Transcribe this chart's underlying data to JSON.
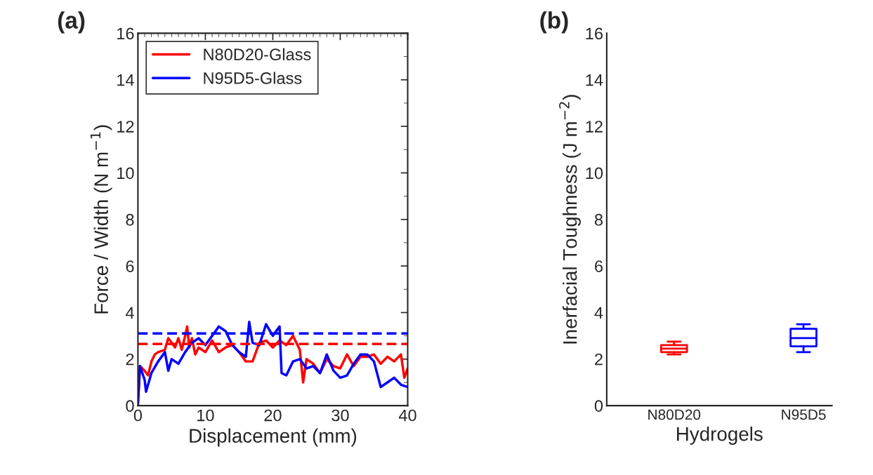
{
  "chart_data": [
    {
      "type": "line",
      "xlabel": "Displacement (mm)",
      "ylabel": "Force / Width (N m$^{−1}$)",
      "annotations": [
        "(a)"
      ],
      "xlim": [
        0,
        40
      ],
      "xticks": [
        0,
        10,
        20,
        30,
        40
      ],
      "ylim": [
        0,
        16
      ],
      "yticks": [
        0,
        2,
        4,
        6,
        8,
        10,
        12,
        14,
        16
      ],
      "legend": "top left",
      "grid": false,
      "line_style": "solid",
      "series": [
        {
          "name": "N80D20-Glass",
          "color": "#ff0000",
          "x": [
            0,
            0.3,
            1,
            1.5,
            2,
            2.5,
            3,
            4,
            4.5,
            5,
            5.5,
            6,
            6.5,
            7,
            7.3,
            7.6,
            8,
            8.5,
            9,
            10,
            11,
            12,
            13,
            14,
            15,
            16,
            17,
            18,
            19,
            20,
            21,
            22,
            23,
            24,
            24.5,
            25,
            26,
            27,
            28,
            29,
            30,
            31,
            32,
            33,
            34,
            35,
            36,
            37,
            38,
            39,
            39.5,
            40
          ],
          "values": [
            0,
            1.7,
            1.5,
            1.3,
            1.9,
            2.2,
            2.3,
            2.4,
            2.9,
            2.7,
            2.5,
            2.9,
            2.4,
            3.0,
            3.4,
            2.5,
            2.9,
            2.2,
            2.5,
            2.3,
            2.8,
            2.3,
            2.5,
            2.6,
            2.3,
            1.9,
            1.9,
            2.7,
            2.8,
            2.5,
            2.8,
            2.6,
            3.0,
            2.4,
            1.0,
            2.0,
            1.8,
            1.4,
            2.0,
            1.7,
            1.6,
            2.2,
            1.7,
            2.1,
            2.1,
            2.2,
            1.8,
            2.1,
            1.9,
            2.2,
            1.2,
            1.6
          ]
        },
        {
          "name": "N95D5-Glass",
          "color": "#0000ff",
          "x": [
            0,
            0.3,
            1,
            1.2,
            2,
            3,
            4,
            4.5,
            5,
            6,
            7,
            8,
            9,
            10,
            11,
            12,
            13,
            14,
            15,
            16,
            16.5,
            17,
            18,
            19,
            20,
            21,
            21.3,
            22,
            23,
            24,
            25,
            26,
            27,
            28,
            29,
            30,
            31,
            32,
            33,
            34,
            35,
            36,
            37,
            38,
            39,
            40
          ],
          "values": [
            0.1,
            1.7,
            1.1,
            0.6,
            1.4,
            1.9,
            2.3,
            1.5,
            2.0,
            1.8,
            2.3,
            2.7,
            2.9,
            2.6,
            3.0,
            3.4,
            3.2,
            2.6,
            2.3,
            2.1,
            3.6,
            2.7,
            2.6,
            3.5,
            3.0,
            3.4,
            1.4,
            1.3,
            1.9,
            2.0,
            1.6,
            1.7,
            1.4,
            2.2,
            1.5,
            1.2,
            1.3,
            1.8,
            2.2,
            2.2,
            1.9,
            0.8,
            1.0,
            1.2,
            0.9,
            0.8
          ]
        }
      ],
      "ref_lines": [
        {
          "axis": "y",
          "value": 3.1,
          "color": "#0000ff",
          "line_style": "dashed"
        },
        {
          "axis": "y",
          "value": 2.65,
          "color": "#ff0000",
          "line_style": "dashed"
        }
      ]
    },
    {
      "type": "box",
      "xlabel": "Hydrogels",
      "ylabel": "Inerfacial Toughness (J m$^{−2}$)",
      "annotations": [
        "(b)"
      ],
      "categories": [
        "N80D20",
        "N95D5"
      ],
      "colors": [
        "#ff0000",
        "#0000ff"
      ],
      "ylim": [
        0,
        16
      ],
      "yticks": [
        0,
        2,
        4,
        6,
        8,
        10,
        12,
        14,
        16
      ],
      "grid": false,
      "boxes": [
        {
          "low": 2.2,
          "q1": 2.3,
          "median": 2.45,
          "q3": 2.6,
          "high": 2.75
        },
        {
          "low": 2.3,
          "q1": 2.55,
          "median": 2.9,
          "q3": 3.3,
          "high": 3.5
        }
      ]
    }
  ]
}
